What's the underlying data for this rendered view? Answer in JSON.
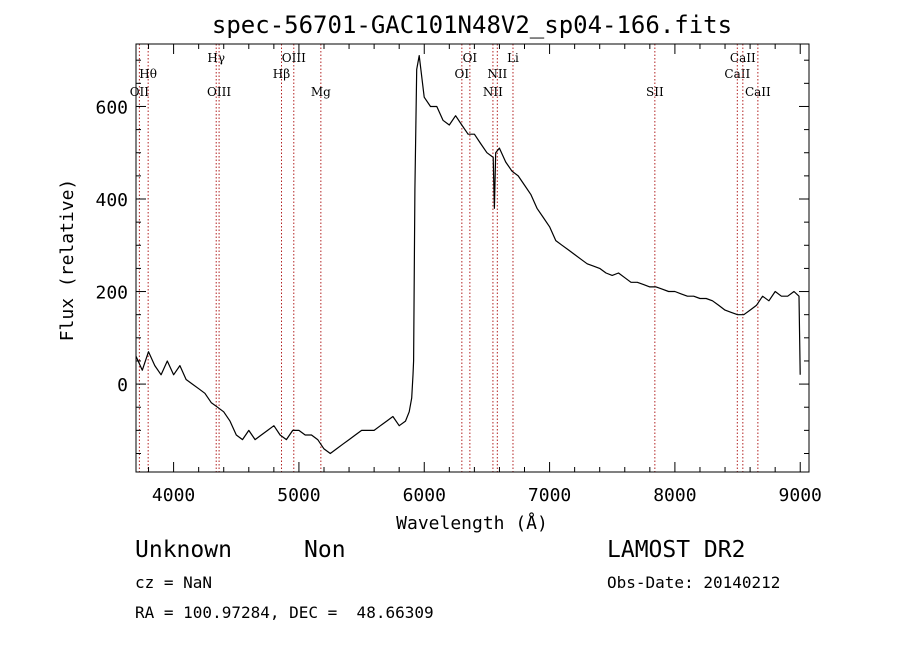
{
  "chart_data": {
    "type": "line",
    "title": "spec-56701-GAC101N48V2_sp04-166.fits",
    "xlabel": "Wavelength (Å)",
    "ylabel": "Flux (relative)",
    "xlim": [
      3700,
      9070
    ],
    "ylim": [
      -190,
      735
    ],
    "xticks": [
      4000,
      5000,
      6000,
      7000,
      8000,
      9000
    ],
    "xtick_labels": [
      "4000",
      "5000",
      "6000",
      "7000",
      "8000",
      "9000"
    ],
    "yticks": [
      0,
      200,
      400,
      600
    ],
    "ytick_labels": [
      "0",
      "200",
      "400",
      "600"
    ],
    "grid": false,
    "series": [
      {
        "x": [
          3700,
          3750,
          3800,
          3850,
          3900,
          3950,
          4000,
          4050,
          4100,
          4150,
          4200,
          4250,
          4300,
          4350,
          4400,
          4450,
          4500,
          4550,
          4600,
          4650,
          4700,
          4750,
          4800,
          4850,
          4900,
          4950,
          5000,
          5050,
          5100,
          5150,
          5200,
          5250,
          5300,
          5350,
          5400,
          5450,
          5500,
          5550,
          5600,
          5650,
          5700,
          5750,
          5800,
          5850,
          5880,
          5900,
          5910,
          5915,
          5925,
          5940,
          5960,
          6000,
          6050,
          6100,
          6150,
          6200,
          6250,
          6300,
          6350,
          6400,
          6450,
          6500,
          6550,
          6560,
          6570,
          6600,
          6650,
          6700,
          6750,
          6800,
          6850,
          6900,
          6950,
          7000,
          7050,
          7100,
          7150,
          7200,
          7250,
          7300,
          7350,
          7400,
          7450,
          7500,
          7550,
          7600,
          7650,
          7700,
          7750,
          7800,
          7850,
          7900,
          7950,
          8000,
          8050,
          8100,
          8150,
          8200,
          8250,
          8300,
          8350,
          8400,
          8450,
          8500,
          8550,
          8600,
          8650,
          8700,
          8750,
          8800,
          8850,
          8900,
          8950,
          8990,
          9000
        ],
        "values": [
          60,
          30,
          70,
          40,
          20,
          50,
          20,
          40,
          10,
          0,
          -10,
          -20,
          -40,
          -50,
          -60,
          -80,
          -110,
          -120,
          -100,
          -120,
          -110,
          -100,
          -90,
          -110,
          -120,
          -100,
          -100,
          -110,
          -110,
          -120,
          -140,
          -150,
          -140,
          -130,
          -120,
          -110,
          -100,
          -100,
          -100,
          -90,
          -80,
          -70,
          -90,
          -80,
          -60,
          -30,
          20,
          50,
          420,
          680,
          710,
          620,
          600,
          600,
          570,
          560,
          580,
          560,
          540,
          540,
          520,
          500,
          490,
          380,
          500,
          510,
          480,
          460,
          450,
          430,
          410,
          380,
          360,
          340,
          310,
          300,
          290,
          280,
          270,
          260,
          255,
          250,
          240,
          235,
          240,
          230,
          220,
          220,
          215,
          210,
          210,
          205,
          200,
          200,
          195,
          190,
          190,
          185,
          185,
          180,
          170,
          160,
          155,
          150,
          150,
          160,
          170,
          190,
          180,
          200,
          190,
          190,
          200,
          190,
          20
        ]
      }
    ],
    "lines": [
      {
        "x": 3727,
        "label": "OII",
        "row": 3
      },
      {
        "x": 3797,
        "label": "Hθ",
        "row": 2
      },
      {
        "x": 4340,
        "label": "Hγ",
        "row": 1
      },
      {
        "x": 4363,
        "label": "OIII",
        "row": 3
      },
      {
        "x": 4861,
        "label": "Hβ",
        "row": 2
      },
      {
        "x": 4959,
        "label": "OIII",
        "row": 1
      },
      {
        "x": 5175,
        "label": "Mg",
        "row": 3
      },
      {
        "x": 6300,
        "label": "OI",
        "row": 2
      },
      {
        "x": 6364,
        "label": "OI",
        "row": 1
      },
      {
        "x": 6548,
        "label": "NII",
        "row": 3
      },
      {
        "x": 6583,
        "label": "NII",
        "row": 2
      },
      {
        "x": 6708,
        "label": "Li",
        "row": 1
      },
      {
        "x": 7840,
        "label": "SII",
        "row": 3
      },
      {
        "x": 8498,
        "label": "CaII",
        "row": 2
      },
      {
        "x": 8542,
        "label": "CaII",
        "row": 1
      },
      {
        "x": 8662,
        "label": "CaII",
        "row": 3
      }
    ],
    "line_color": "#b22222"
  },
  "footer": {
    "object_class": "Unknown",
    "object_subclass": "Non",
    "survey": "LAMOST DR2",
    "redshift": "cz = NaN",
    "obs_date": "Obs-Date: 20140212",
    "coords": "RA = 100.97284, DEC =  48.66309"
  }
}
